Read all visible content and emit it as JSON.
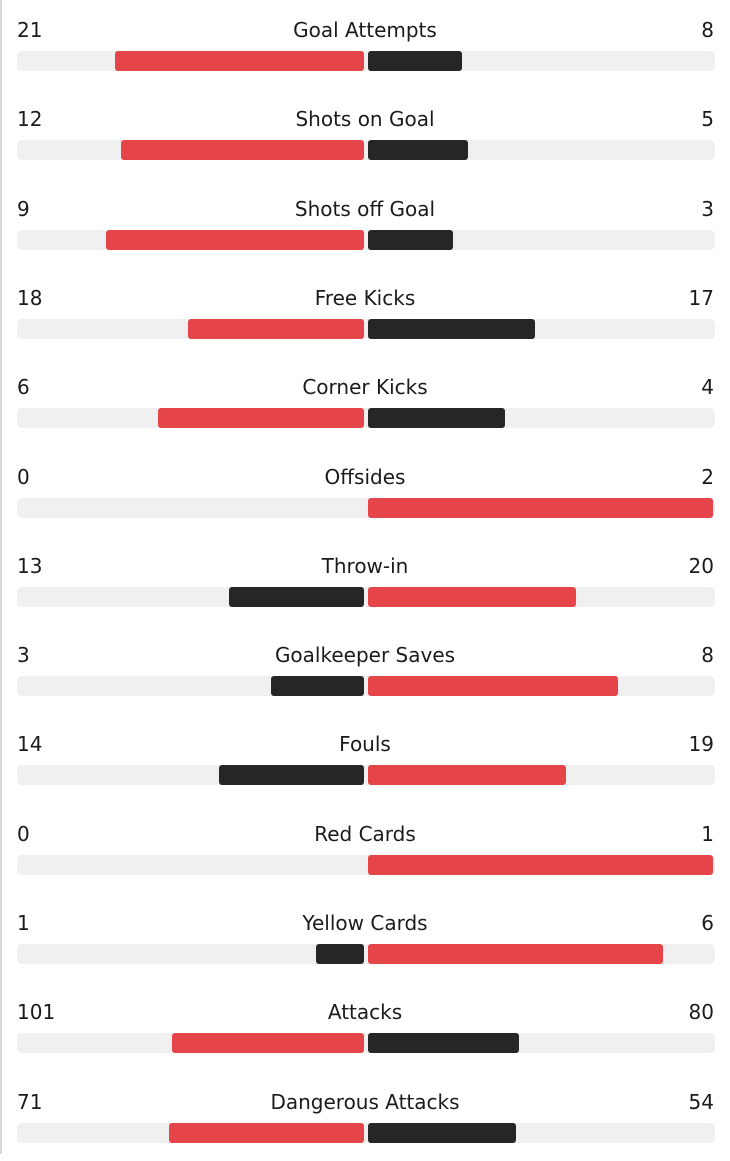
{
  "colors": {
    "leader": "#e54549",
    "trailer": "#262626",
    "track": "#f0f0f0"
  },
  "stats": [
    {
      "label": "Goal Attempts",
      "home": 21,
      "away": 8
    },
    {
      "label": "Shots on Goal",
      "home": 12,
      "away": 5
    },
    {
      "label": "Shots off Goal",
      "home": 9,
      "away": 3
    },
    {
      "label": "Free Kicks",
      "home": 18,
      "away": 17
    },
    {
      "label": "Corner Kicks",
      "home": 6,
      "away": 4
    },
    {
      "label": "Offsides",
      "home": 0,
      "away": 2
    },
    {
      "label": "Throw-in",
      "home": 13,
      "away": 20
    },
    {
      "label": "Goalkeeper Saves",
      "home": 3,
      "away": 8
    },
    {
      "label": "Fouls",
      "home": 14,
      "away": 19
    },
    {
      "label": "Red Cards",
      "home": 0,
      "away": 1
    },
    {
      "label": "Yellow Cards",
      "home": 1,
      "away": 6
    },
    {
      "label": "Attacks",
      "home": 101,
      "away": 80
    },
    {
      "label": "Dangerous Attacks",
      "home": 71,
      "away": 54
    }
  ]
}
